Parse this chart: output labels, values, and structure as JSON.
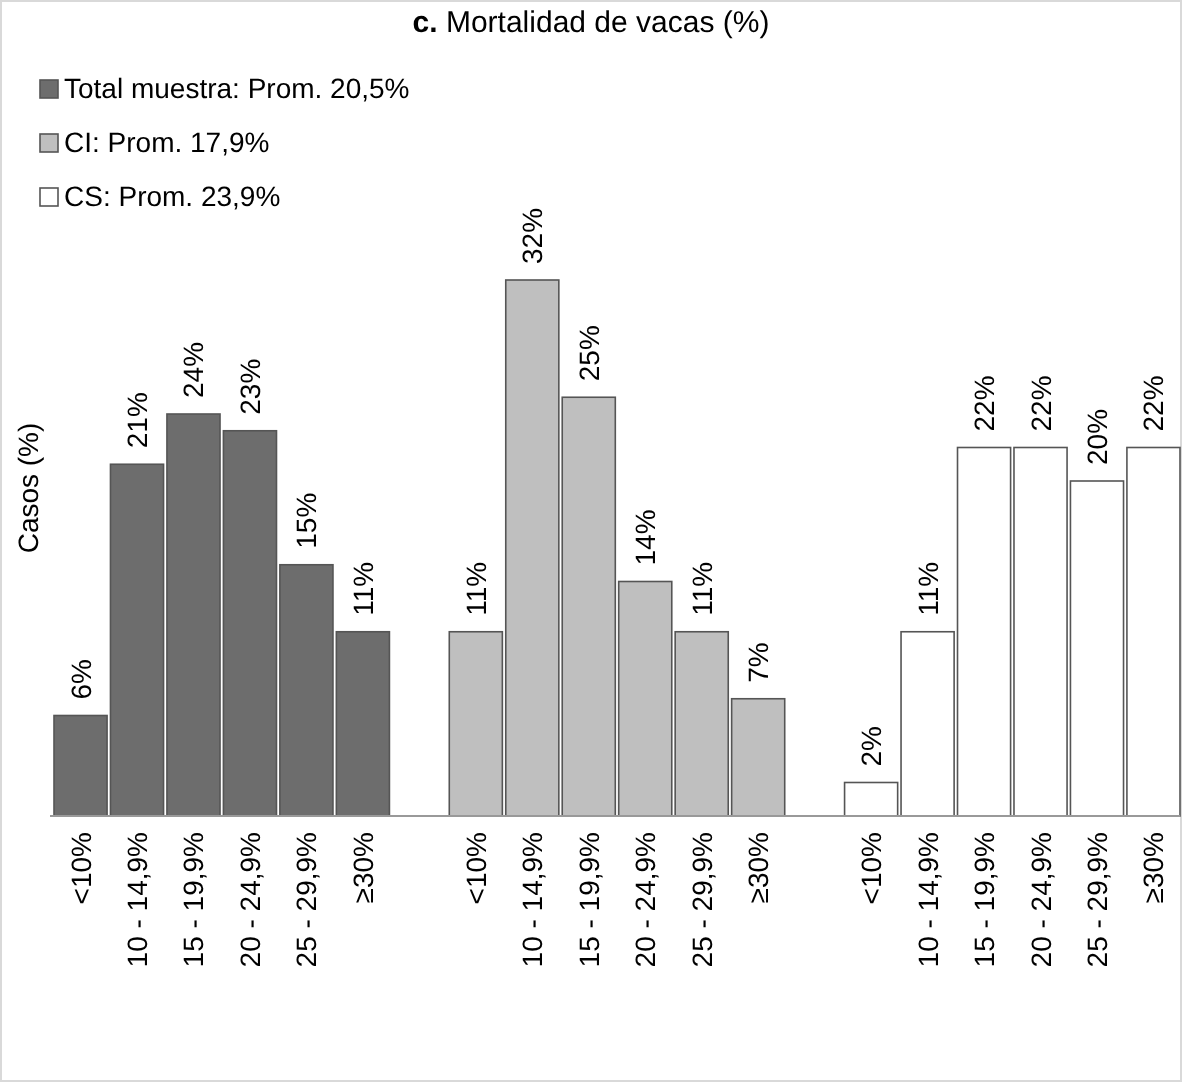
{
  "chart_data": {
    "type": "bar",
    "title": "c. Mortalidad de vacas (%)",
    "ylabel": "Casos (%)",
    "categories": [
      "<10%",
      "10 - 14,9%",
      "15 - 19,9%",
      "20 - 24,9%",
      "25 - 29,9%",
      "≥30%",
      null,
      "<10%",
      "10 - 14,9%",
      "15 - 19,9%",
      "20 - 24,9%",
      "25 - 29,9%",
      "≥30%",
      null,
      "<10%",
      "10 - 14,9%",
      "15 - 19,9%",
      "20 - 24,9%",
      "25 - 29,9%",
      "≥30%"
    ],
    "series": [
      {
        "name": "Total muestra: Prom. 20,5%",
        "color": "#6d6d6d",
        "values": [
          6,
          21,
          24,
          23,
          15,
          11,
          null,
          null,
          null,
          null,
          null,
          null,
          null,
          null,
          null,
          null,
          null,
          null,
          null,
          null
        ],
        "value_labels": [
          "6%",
          "21%",
          "24%",
          "23%",
          "15%",
          "11%",
          null,
          null,
          null,
          null,
          null,
          null,
          null,
          null,
          null,
          null,
          null,
          null,
          null,
          null
        ]
      },
      {
        "name": "CI: Prom. 17,9%",
        "color": "#bfbfbf",
        "values": [
          null,
          null,
          null,
          null,
          null,
          null,
          null,
          11,
          32,
          25,
          14,
          11,
          7,
          null,
          null,
          null,
          null,
          null,
          null,
          null
        ],
        "value_labels": [
          null,
          null,
          null,
          null,
          null,
          null,
          null,
          "11%",
          "32%",
          "25%",
          "14%",
          "11%",
          "7%",
          null,
          null,
          null,
          null,
          null,
          null,
          null
        ]
      },
      {
        "name": "CS: Prom. 23,9%",
        "color": "#ffffff",
        "values": [
          null,
          null,
          null,
          null,
          null,
          null,
          null,
          null,
          null,
          null,
          null,
          null,
          null,
          null,
          2,
          11,
          22,
          22,
          20,
          22
        ],
        "value_labels": [
          null,
          null,
          null,
          null,
          null,
          null,
          null,
          null,
          null,
          null,
          null,
          null,
          null,
          null,
          "2%",
          "11%",
          "22%",
          "22%",
          "20%",
          "22%"
        ]
      }
    ],
    "legend": "top left",
    "grid": false
  }
}
